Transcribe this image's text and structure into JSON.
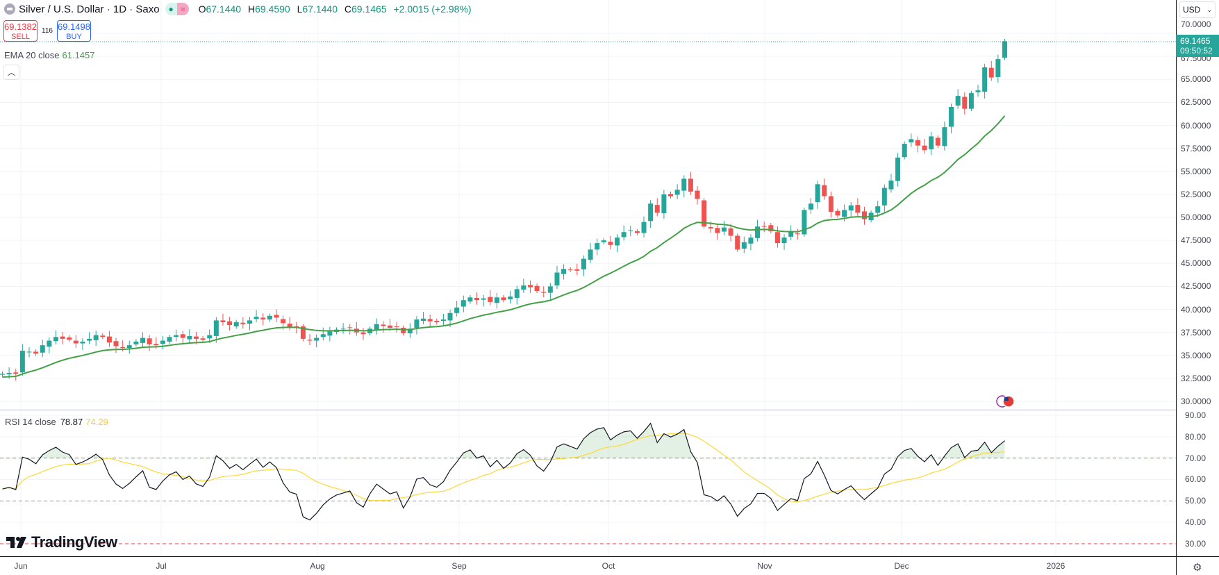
{
  "header": {
    "title": "Silver / U.S. Dollar · 1D · Saxo",
    "market_status_icon": "dot-icon",
    "data_icon": "approx-icon",
    "open_label": "O",
    "open": "67.1440",
    "high_label": "H",
    "high": "69.4590",
    "low_label": "L",
    "low": "67.1440",
    "close_label": "C",
    "close": "69.1465",
    "change": "+2.0015 (+2.98%)"
  },
  "trade": {
    "sell_price": "69.1382",
    "sell_label": "SELL",
    "spread": "116",
    "buy_price": "69.1498",
    "buy_label": "BUY"
  },
  "ema_legend": {
    "label": "EMA 20 close",
    "value": "61.1457"
  },
  "rsi_legend": {
    "label": "RSI 14 close",
    "value": "78.87",
    "ma_value": "74.29"
  },
  "currency": "USD",
  "current_price": {
    "price": "69.1465",
    "countdown": "09:50:52"
  },
  "price_axis": [
    "70.0000",
    "67.5000",
    "65.0000",
    "62.5000",
    "60.0000",
    "57.5000",
    "55.0000",
    "52.5000",
    "50.0000",
    "47.5000",
    "45.0000",
    "42.5000",
    "40.0000",
    "37.5000",
    "35.0000",
    "32.5000",
    "30.0000"
  ],
  "rsi_axis": [
    "90.00",
    "80.00",
    "70.00",
    "60.00",
    "50.00",
    "40.00",
    "30.00"
  ],
  "time_axis": [
    "Jun",
    "Jul",
    "Aug",
    "Sep",
    "Oct",
    "Nov",
    "Dec",
    "2026"
  ],
  "brand": "TradingView",
  "colors": {
    "up": "#26a69a",
    "down": "#ef5350",
    "ema": "#43a047",
    "rsi": "#131722",
    "rsi_ma": "#fdd835"
  },
  "chart_data": {
    "type": "candlestick",
    "title": "Silver / U.S. Dollar · 1D · Saxo",
    "ylim": [
      30,
      70
    ],
    "rsi_ylim": [
      30,
      90
    ],
    "rsi_levels": [
      70,
      50,
      30
    ],
    "ema_period": 20,
    "rsi_period": 14,
    "closes": [
      33.0,
      33.1,
      33.0,
      35.5,
      35.4,
      35.2,
      36.1,
      36.6,
      37.0,
      36.8,
      36.7,
      36.3,
      36.5,
      36.8,
      37.2,
      37.0,
      36.4,
      36.0,
      35.8,
      36.1,
      36.5,
      36.9,
      36.2,
      36.1,
      36.6,
      37.0,
      37.2,
      36.9,
      37.1,
      36.8,
      36.7,
      37.2,
      38.8,
      38.6,
      38.3,
      38.6,
      38.4,
      38.8,
      39.2,
      38.9,
      39.3,
      39.1,
      38.5,
      38.1,
      38.0,
      36.8,
      36.6,
      36.9,
      37.3,
      37.6,
      37.8,
      37.9,
      38.0,
      37.5,
      37.3,
      37.9,
      38.4,
      38.2,
      38.0,
      38.1,
      37.4,
      37.9,
      38.9,
      39.0,
      38.7,
      38.6,
      38.9,
      39.6,
      40.2,
      41.0,
      41.3,
      41.0,
      41.2,
      40.8,
      41.3,
      41.0,
      41.4,
      42.2,
      42.6,
      42.4,
      42.0,
      41.8,
      42.5,
      44.0,
      44.4,
      44.3,
      44.2,
      45.5,
      46.5,
      47.2,
      47.5,
      47.0,
      47.8,
      48.4,
      48.6,
      48.3,
      49.5,
      51.5,
      50.5,
      52.5,
      52.3,
      53.0,
      54.2,
      52.8,
      52.0,
      49.0,
      48.8,
      48.3,
      48.9,
      48.0,
      46.5,
      47.3,
      47.8,
      49.0,
      49.0,
      48.5,
      47.2,
      47.8,
      48.4,
      48.2,
      50.8,
      51.5,
      53.6,
      52.3,
      50.6,
      50.2,
      50.8,
      51.3,
      50.5,
      49.8,
      50.5,
      51.2,
      53.2,
      54.0,
      56.5,
      58.0,
      58.5,
      57.8,
      57.3,
      58.8,
      57.8,
      59.8,
      62.0,
      63.2,
      61.8,
      63.5,
      63.8,
      66.3,
      65.2,
      67.2,
      69.15
    ]
  }
}
